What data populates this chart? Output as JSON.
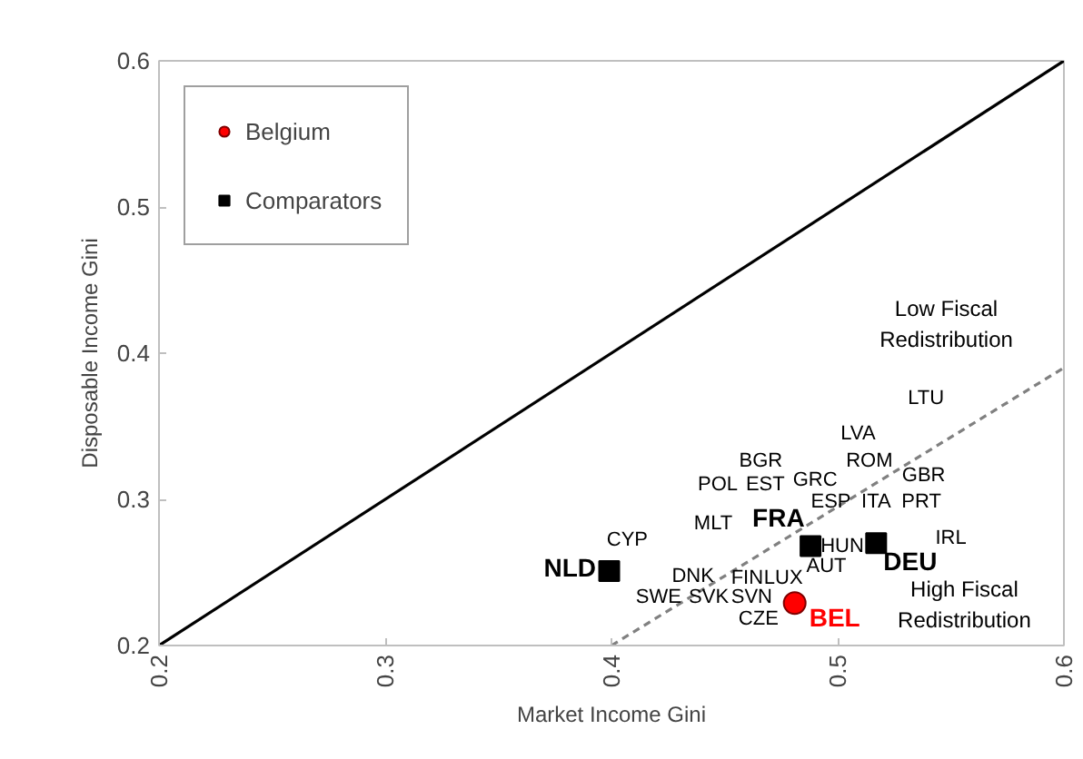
{
  "chart_data": {
    "type": "scatter",
    "xlabel": "Market Income Gini",
    "ylabel": "Disposable Income Gini",
    "xlim": [
      0.2,
      0.6
    ],
    "ylim": [
      0.2,
      0.6
    ],
    "xticks": [
      0.2,
      0.3,
      0.4,
      0.5,
      0.6
    ],
    "yticks": [
      0.2,
      0.3,
      0.4,
      0.5,
      0.6
    ],
    "grid": false,
    "legend": "top left",
    "series": [
      {
        "type": "line",
        "color": "#000000",
        "x": [
          0.2,
          0.6
        ],
        "values": [
          0.2,
          0.6
        ],
        "line_style": "solid",
        "marker": "none"
      },
      {
        "type": "line",
        "color": "#808080",
        "x": [
          0.4,
          0.6
        ],
        "values": [
          0.2,
          0.39
        ],
        "line_style": "dashed",
        "marker": "none"
      },
      {
        "name": "Belgium",
        "color": "#ff0000",
        "marker": "circle",
        "x": [
          0.481
        ],
        "values": [
          0.229
        ],
        "value_labels": [
          "BEL"
        ]
      },
      {
        "name": "Comparators",
        "color": "#000000",
        "marker": "square",
        "x": [
          0.399,
          0.488,
          0.517
        ],
        "values": [
          0.251,
          0.268,
          0.27
        ],
        "value_labels": [
          "NLD",
          "FRA",
          "DEU"
        ]
      }
    ],
    "annotations": [
      "Low Fiscal\nRedistribution",
      "High Fiscal\nRedistribution",
      "CYP",
      "MLT",
      "BGR",
      "POL",
      "EST",
      "GRC",
      "ROM",
      "GBR",
      "ESP",
      "ITA",
      "PRT",
      "LVA",
      "LTU",
      "IRL",
      "HUN",
      "AUT",
      "LUX",
      "FIN",
      "DNK",
      "SWE",
      "SVK",
      "SVN",
      "CZE"
    ]
  }
}
